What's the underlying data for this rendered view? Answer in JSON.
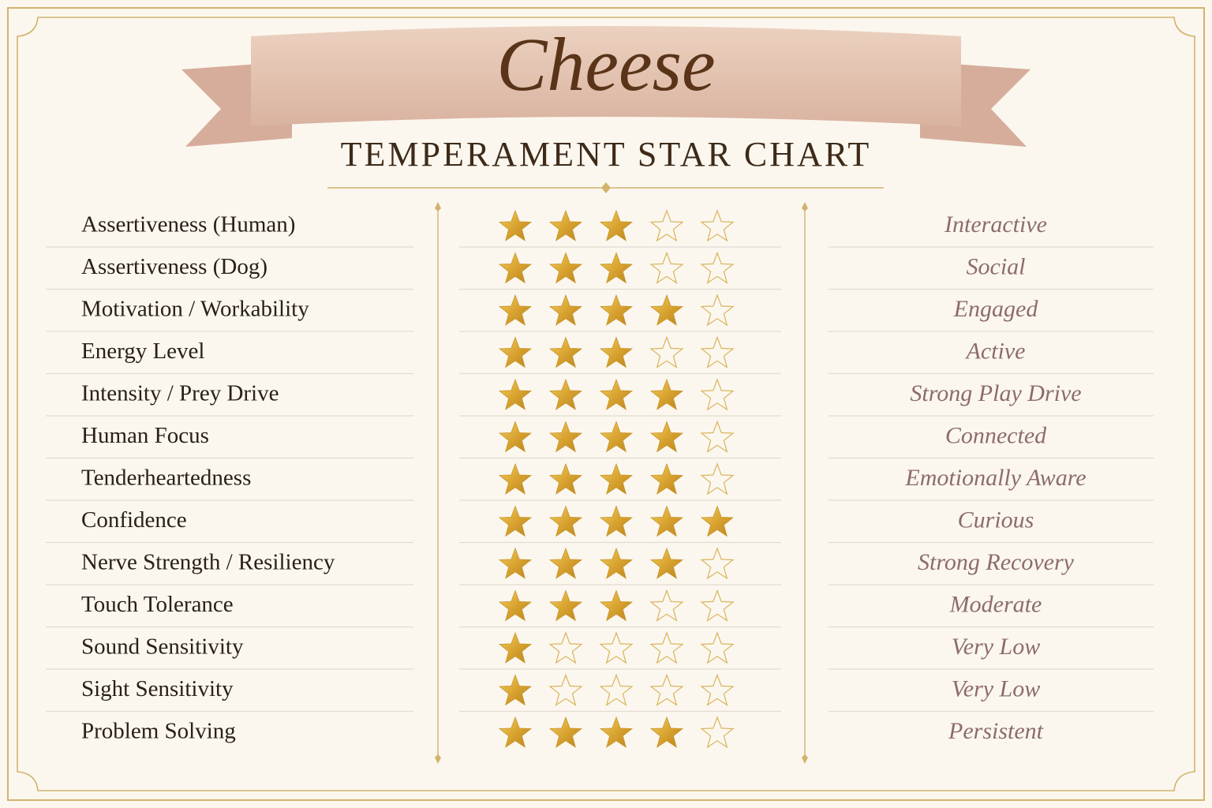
{
  "header": {
    "title": "Cheese",
    "subtitle": "TEMPERAMENT STAR CHART"
  },
  "table": {
    "stars_out_of": 5,
    "rows": [
      {
        "trait": "Assertiveness (Human)",
        "stars": 3,
        "descriptor": "Interactive"
      },
      {
        "trait": "Assertiveness (Dog)",
        "stars": 3,
        "descriptor": "Social"
      },
      {
        "trait": "Motivation / Workability",
        "stars": 4,
        "descriptor": "Engaged"
      },
      {
        "trait": "Energy Level",
        "stars": 3,
        "descriptor": "Active"
      },
      {
        "trait": "Intensity / Prey Drive",
        "stars": 4,
        "descriptor": "Strong Play Drive"
      },
      {
        "trait": "Human Focus",
        "stars": 4,
        "descriptor": "Connected"
      },
      {
        "trait": "Tenderheartedness",
        "stars": 4,
        "descriptor": "Emotionally Aware"
      },
      {
        "trait": "Confidence",
        "stars": 5,
        "descriptor": "Curious"
      },
      {
        "trait": "Nerve Strength / Resiliency",
        "stars": 4,
        "descriptor": "Strong Recovery"
      },
      {
        "trait": "Touch Tolerance",
        "stars": 3,
        "descriptor": "Moderate"
      },
      {
        "trait": "Sound Sensitivity",
        "stars": 1,
        "descriptor": "Very Low"
      },
      {
        "trait": "Sight Sensitivity",
        "stars": 1,
        "descriptor": "Very Low"
      },
      {
        "trait": "Problem Solving",
        "stars": 4,
        "descriptor": "Persistent"
      }
    ]
  }
}
